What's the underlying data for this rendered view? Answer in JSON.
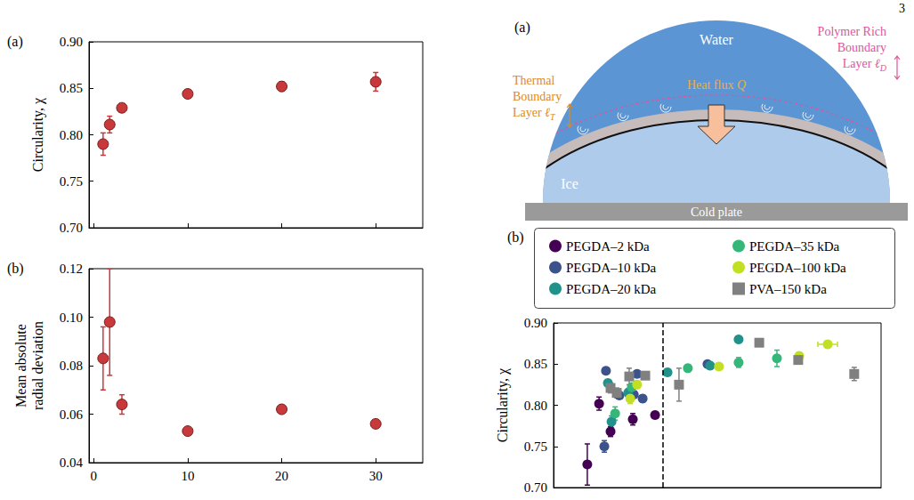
{
  "page_number": 3,
  "chart_data": [
    {
      "type": "scatter",
      "label": "(a)",
      "ylabel": "Circularity, χ",
      "x": [
        1,
        1.7,
        3,
        10,
        20,
        30
      ],
      "values": [
        0.79,
        0.811,
        0.829,
        0.844,
        0.852,
        0.857
      ],
      "errors": [
        0.012,
        0.009,
        0.003,
        0.003,
        0.005,
        0.01
      ],
      "color": "#c8393b",
      "marker": "circle",
      "xlim": [
        -0.5,
        35
      ],
      "xticks": [
        0,
        10,
        20,
        30
      ],
      "ylim": [
        0.7,
        0.9
      ],
      "yticks": [
        {
          "value": 0.7,
          "label": "0.70"
        },
        0.75,
        {
          "value": 0.8,
          "label": "0.80"
        },
        0.85,
        {
          "value": 0.9,
          "label": "0.90"
        }
      ],
      "tick_labels": "y",
      "grid": false
    },
    {
      "type": "scatter",
      "label": "(b)",
      "ylabel": "Mean absolute radial deviation",
      "x": [
        1,
        1.7,
        3,
        10,
        20,
        30
      ],
      "values": [
        0.083,
        0.098,
        0.064,
        0.053,
        0.062,
        0.056
      ],
      "errors": [
        0.013,
        0.022,
        0.004,
        0.001,
        0.001,
        0.001
      ],
      "color": "#c8393b",
      "marker": "circle",
      "xlim": [
        -0.5,
        35
      ],
      "xticks": [
        0,
        10,
        20,
        30
      ],
      "ylim": [
        0.04,
        0.12
      ],
      "yticks": [
        0.04,
        0.06,
        0.08,
        {
          "value": 0.1,
          "label": "0.10"
        },
        0.12
      ],
      "tick_labels": true,
      "grid": false
    },
    {
      "type": "scatter",
      "label": "(b)",
      "ylabel": "Circularity, χ",
      "xlim": [
        0,
        100
      ],
      "xticks": [],
      "ylim": [
        0.7,
        0.9
      ],
      "yticks": [
        {
          "value": 0.7,
          "label": "0.70"
        },
        0.75,
        {
          "value": 0.8,
          "label": "0.80"
        },
        0.85,
        {
          "value": 0.9,
          "label": "0.90"
        }
      ],
      "tick_labels": "y",
      "grid": false,
      "legend": "top",
      "reference_line": {
        "x": 33.4,
        "line_style": "dashed"
      },
      "series": [
        {
          "name": "PEGDA–2 kDa",
          "color": "#440154",
          "marker": "circle",
          "x": [
            10.3,
            13.9,
            17.4,
            24.2,
            31.0
          ],
          "values": [
            0.728,
            0.802,
            0.768,
            0.783,
            0.788
          ],
          "errors": [
            0.025,
            0.008,
            0.006,
            0.007,
            0.004
          ]
        },
        {
          "name": "PEGDA–10 kDa",
          "color": "#3b528b",
          "marker": "circle",
          "x": [
            15.5,
            16.0,
            20.1,
            24.5,
            25.5,
            27.2,
            47.0
          ],
          "values": [
            0.75,
            0.842,
            0.812,
            0.813,
            0.838,
            0.808,
            0.85
          ],
          "errors": [
            0.007,
            0.003,
            0.004,
            0.004,
            0.003,
            0.004,
            0.003
          ]
        },
        {
          "name": "PEGDA–20 kDa",
          "color": "#21918c",
          "marker": "circle",
          "x": [
            16.6,
            17.7,
            22.8,
            34.8,
            47.8,
            56.5
          ],
          "values": [
            0.827,
            0.78,
            0.815,
            0.84,
            0.848,
            0.88
          ],
          "errors": [
            0.004,
            0.007,
            0.005,
            0.003,
            0.004,
            0.003
          ]
        },
        {
          "name": "PEGDA–35 kDa",
          "color": "#35b779",
          "marker": "circle",
          "x": [
            18.8,
            23.9,
            41.0,
            56.5,
            68.2
          ],
          "values": [
            0.79,
            0.822,
            0.845,
            0.852,
            0.857
          ],
          "errors": [
            0.008,
            0.005,
            0.003,
            0.006,
            0.01
          ]
        },
        {
          "name": "PEGDA–100 kDa",
          "color": "#c2df23",
          "marker": "circle",
          "x": [
            23.4,
            25.5,
            50.5,
            75.0,
            83.7
          ],
          "values": [
            0.808,
            0.825,
            0.847,
            0.86,
            0.874
          ],
          "errors": [
            0.006,
            0.004,
            0.003,
            0.004,
            0.004
          ],
          "x_errors": [
            null,
            null,
            null,
            null,
            3.0
          ]
        },
        {
          "name": "PVA–150 kDa",
          "color": "#808080",
          "marker": "square",
          "x": [
            17.4,
            19.3,
            23.1,
            28.0,
            38.3,
            62.8,
            74.7,
            91.8
          ],
          "values": [
            0.821,
            0.815,
            0.835,
            0.836,
            0.825,
            0.876,
            0.855,
            0.838
          ],
          "errors": [
            0.006,
            0.006,
            0.01,
            0.004,
            0.02,
            0.004,
            0.004,
            0.008
          ]
        }
      ]
    }
  ],
  "diagram": {
    "label": "(a)",
    "texts": {
      "water": "Water",
      "ice": "Ice",
      "cold_plate": "Cold plate"
    },
    "heat_flux": {
      "text": "Heat flux",
      "symbol": "Q"
    },
    "thermal_layer": {
      "lines": [
        "Thermal",
        "Boundary",
        "Layer"
      ],
      "symbol": "ℓ",
      "subscript": "T"
    },
    "polymer_layer": {
      "lines": [
        "Polymer Rich",
        "Boundary",
        "Layer"
      ],
      "symbol": "ℓ",
      "subscript": "D"
    }
  }
}
